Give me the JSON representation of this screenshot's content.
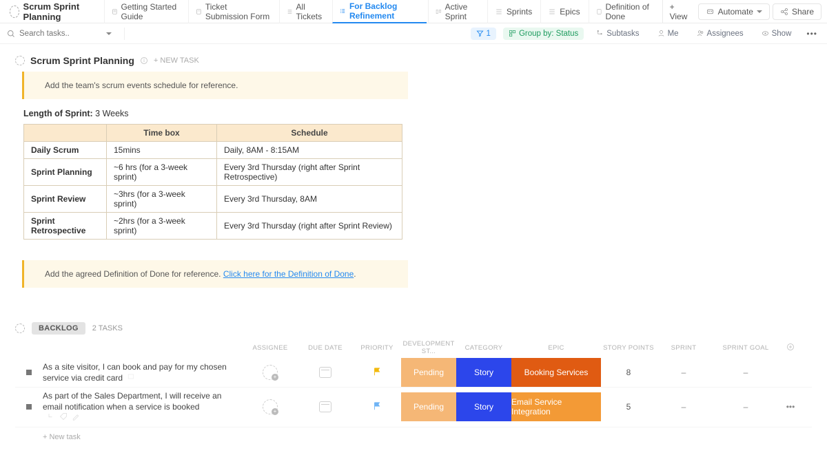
{
  "space": {
    "name": "Scrum Sprint Planning"
  },
  "views": [
    {
      "label": "Getting Started Guide"
    },
    {
      "label": "Ticket Submission Form"
    },
    {
      "label": "All Tickets"
    },
    {
      "label": "For Backlog Refinement"
    },
    {
      "label": "Active Sprint"
    },
    {
      "label": "Sprints"
    },
    {
      "label": "Epics"
    },
    {
      "label": "Definition of Done"
    }
  ],
  "activeViewIndex": 3,
  "addView": "+  View",
  "automate": "Automate",
  "share": "Share",
  "search": {
    "placeholder": "Search tasks.."
  },
  "filterbar": {
    "filterCount": "1",
    "groupBy": "Group by: Status",
    "subtasks": "Subtasks",
    "me": "Me",
    "assignees": "Assignees",
    "show": "Show"
  },
  "section": {
    "title": "Scrum Sprint Planning",
    "newTask": "+ NEW TASK"
  },
  "callout1": "Add the team's scrum events schedule for reference.",
  "length": {
    "label": "Length of Sprint:",
    "value": " 3 Weeks"
  },
  "schedule": {
    "headers": [
      "",
      "Time box",
      "Schedule"
    ],
    "rows": [
      [
        "Daily Scrum",
        "15mins",
        "Daily, 8AM - 8:15AM"
      ],
      [
        "Sprint Planning",
        "~6 hrs (for a 3-week sprint)",
        "Every 3rd Thursday (right after Sprint Retrospective)"
      ],
      [
        "Sprint Review",
        "~3hrs (for a 3-week sprint)",
        "Every 3rd Thursday, 8AM"
      ],
      [
        "Sprint Retrospective",
        "~2hrs (for a 3-week sprint)",
        "Every 3rd Thursday (right after Sprint Review)"
      ]
    ]
  },
  "callout2": {
    "pre": "Add the agreed Definition of Done for reference. ",
    "link": "Click here for the Definition of Done"
  },
  "group": {
    "name": "BACKLOG",
    "count": "2 TASKS"
  },
  "columns": [
    "ASSIGNEE",
    "DUE DATE",
    "PRIORITY",
    "DEVELOPMENT ST...",
    "CATEGORY",
    "EPIC",
    "STORY POINTS",
    "SPRINT",
    "SPRINT GOAL"
  ],
  "tasks": [
    {
      "title": "As a site visitor, I can book and pay for my chosen service via credit card",
      "flagColor": "#f2b90c",
      "dev": "Pending",
      "category": "Story",
      "epic": "Booking Services",
      "epicColor": "#e05b12",
      "points": "8",
      "sprint": "–",
      "goal": "–",
      "showActions": false
    },
    {
      "title": "As part of the Sales Department, I will receive an email notification when a service is booked",
      "flagColor": "#6fb4f5",
      "dev": "Pending",
      "category": "Story",
      "epic": "Email Service Integration",
      "epicColor": "#f39a36",
      "points": "5",
      "sprint": "–",
      "goal": "–",
      "showActions": true
    }
  ],
  "newTaskLine": "+ New task"
}
